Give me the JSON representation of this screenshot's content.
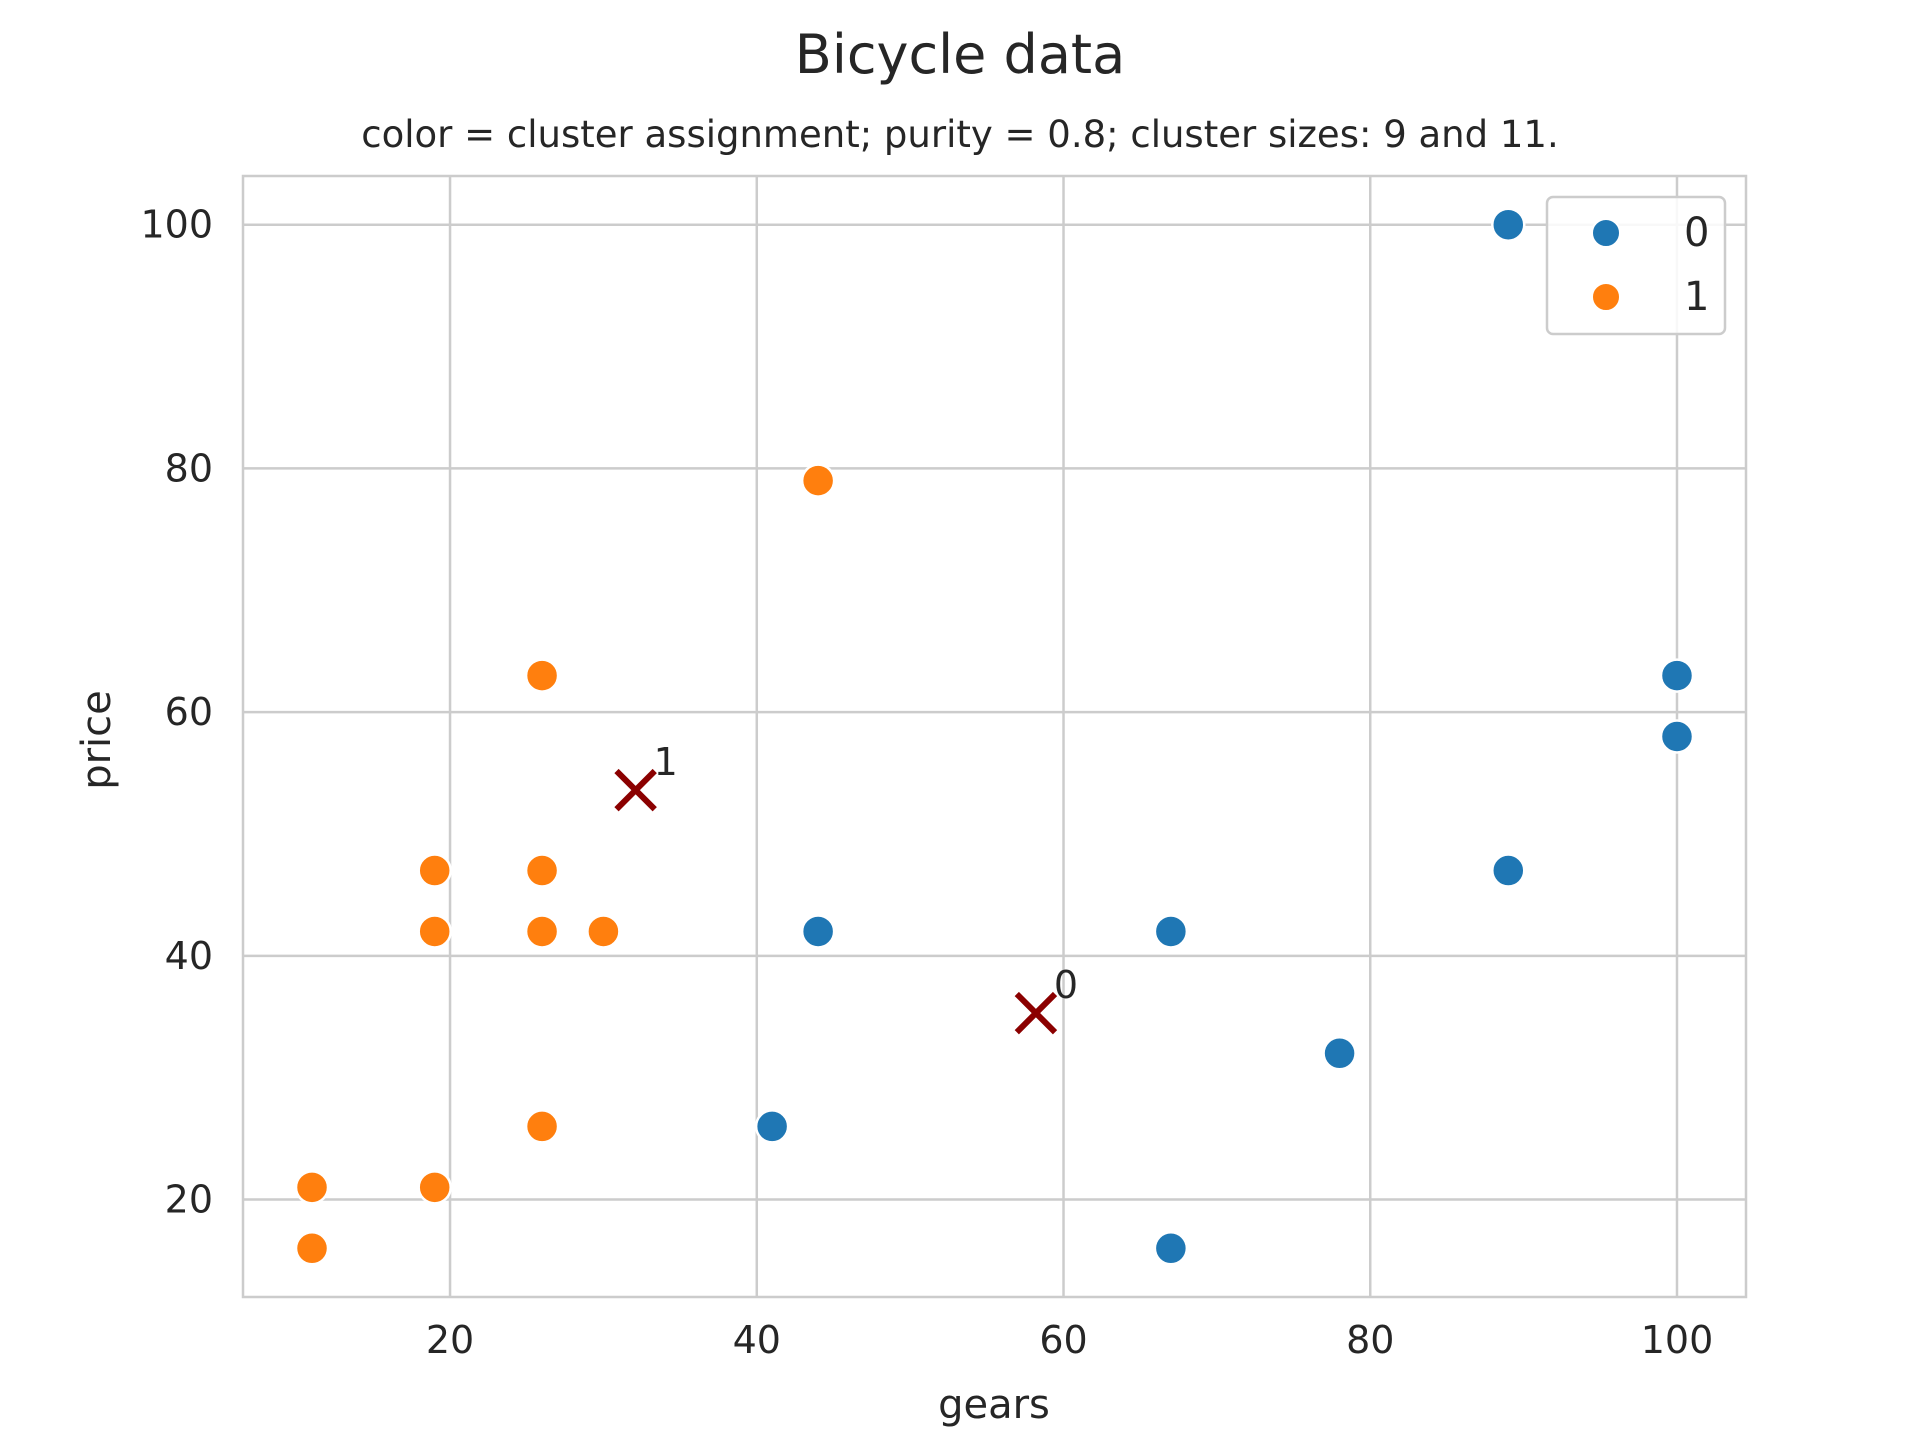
{
  "chart_data": {
    "type": "scatter",
    "title": "Bicycle data",
    "subtitle": "color = cluster assignment; purity = 0.8; cluster sizes: 9 and 11.",
    "xlabel": "gears",
    "ylabel": "price",
    "xlim": [
      6.5,
      104.5
    ],
    "ylim": [
      12,
      104
    ],
    "xticks": [
      20,
      40,
      60,
      80,
      100
    ],
    "yticks": [
      20,
      40,
      60,
      80,
      100
    ],
    "grid": true,
    "legend_position": "top-right",
    "series": [
      {
        "name": "0",
        "color": "#1f77b4",
        "points": [
          {
            "x": 89,
            "y": 100
          },
          {
            "x": 100,
            "y": 63
          },
          {
            "x": 100,
            "y": 58
          },
          {
            "x": 89,
            "y": 47
          },
          {
            "x": 44,
            "y": 42
          },
          {
            "x": 67,
            "y": 42
          },
          {
            "x": 78,
            "y": 32
          },
          {
            "x": 41,
            "y": 26
          },
          {
            "x": 67,
            "y": 16
          }
        ]
      },
      {
        "name": "1",
        "color": "#ff7f0e",
        "points": [
          {
            "x": 44,
            "y": 79
          },
          {
            "x": 26,
            "y": 63
          },
          {
            "x": 19,
            "y": 47
          },
          {
            "x": 26,
            "y": 47
          },
          {
            "x": 19,
            "y": 42
          },
          {
            "x": 26,
            "y": 42
          },
          {
            "x": 30,
            "y": 42
          },
          {
            "x": 26,
            "y": 26
          },
          {
            "x": 11,
            "y": 21
          },
          {
            "x": 19,
            "y": 21
          },
          {
            "x": 11,
            "y": 16
          }
        ]
      }
    ],
    "centroids": [
      {
        "label": "0",
        "x": 58.2,
        "y": 35.3
      },
      {
        "label": "1",
        "x": 32.1,
        "y": 53.6
      }
    ],
    "centroid_color": "#8b0000"
  }
}
